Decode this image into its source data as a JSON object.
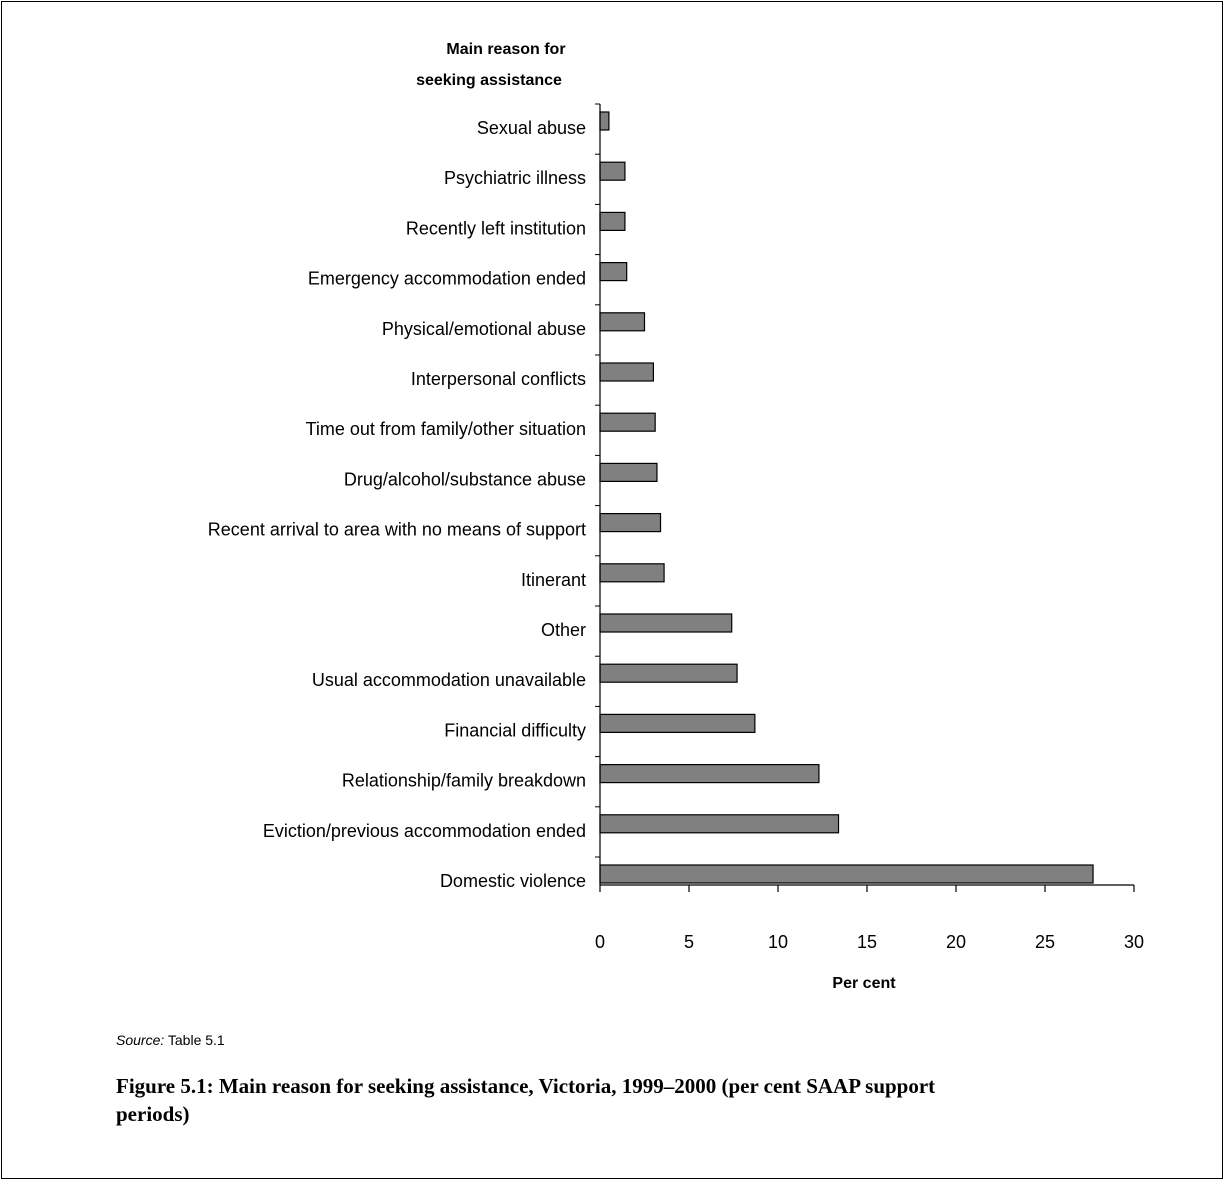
{
  "chart_data": {
    "type": "bar",
    "orientation": "horizontal",
    "ylabel": "Main reason for seeking assistance",
    "xlabel": "Per cent",
    "xlim": [
      0,
      30
    ],
    "xticks": [
      0,
      5,
      10,
      15,
      20,
      25,
      30
    ],
    "categories": [
      "Sexual abuse",
      "Psychiatric illness",
      "Recently left institution",
      "Emergency accommodation ended",
      "Physical/emotional abuse",
      "Interpersonal conflicts",
      "Time out from family/other situation",
      "Drug/alcohol/substance abuse",
      "Recent arrival to area with no means of support",
      "Itinerant",
      "Other",
      "Usual accommodation unavailable",
      "Financial difficulty",
      "Relationship/family breakdown",
      "Eviction/previous accommodation ended",
      "Domestic violence"
    ],
    "values": [
      0.5,
      1.4,
      1.4,
      1.5,
      2.5,
      3.0,
      3.1,
      3.2,
      3.4,
      3.6,
      7.4,
      7.7,
      8.7,
      12.3,
      13.4,
      27.7
    ],
    "bar_color": "#808080",
    "grid": false,
    "legend": "none"
  },
  "source": {
    "label": "Source:",
    "text": " Table 5.1"
  },
  "caption": "Figure 5.1: Main reason for seeking assistance, Victoria, 1999–2000 (per cent SAAP support periods)"
}
